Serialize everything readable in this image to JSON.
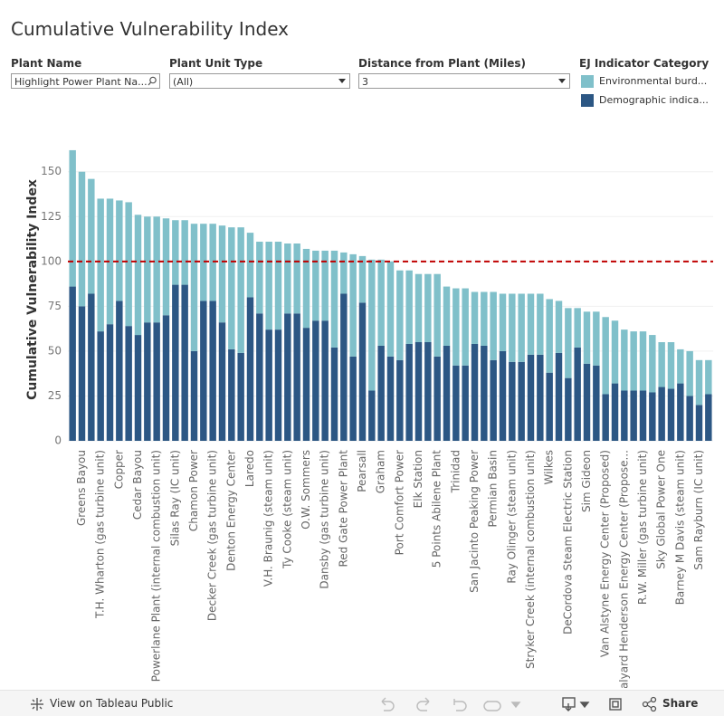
{
  "header": {
    "title": "Cumulative Vulnerability Index"
  },
  "filters": [
    {
      "label": "Plant Name",
      "value": "Highlight Power Plant Na..."
    },
    {
      "label": "Plant Unit Type",
      "value": "(All)"
    },
    {
      "label": "Distance from Plant (Miles)",
      "value": "3"
    }
  ],
  "footer": {
    "link": "View on Tableau Public",
    "share": "Share"
  },
  "chart_data": {
    "type": "stacked_bar",
    "ylabel": "Cumulative Vulnerability Index",
    "legend_title": "EJ Indicator Category",
    "categories": [
      null,
      "Greens Bayou",
      null,
      "T.H. Wharton (gas turbine unit)",
      null,
      "Copper",
      null,
      "Cedar Bayou",
      null,
      "Powerlane Plant (internal combustion unit)",
      null,
      "Silas Ray (IC unit)",
      null,
      "Chamon Power",
      null,
      "Decker Creek (gas turbine unit)",
      null,
      "Denton Energy Center",
      null,
      "Laredo",
      null,
      "V.H. Braunig (steam unit)",
      null,
      "Ty Cooke (steam unit)",
      null,
      "O.W. Sommers",
      null,
      "Dansby (gas turbine unit)",
      null,
      "Red Gate Power Plant",
      null,
      "Pearsall",
      null,
      "Graham",
      null,
      "Port Comfort Power",
      null,
      "Elk Station",
      null,
      "5 Points Abilene Plant",
      null,
      "Trinidad",
      null,
      "San Jacinto Peaking Power",
      null,
      "Permian Basin",
      null,
      "Ray Olinger (steam unit)",
      null,
      "Stryker Creek (internal combustion unit)",
      null,
      "Wilkes",
      null,
      "DeCordova Steam Electric Station",
      null,
      "Sim Gideon",
      null,
      "Van Alstyne Energy Center (Proposed)",
      null,
      "Halyard Henderson Energy Center (Propose...",
      null,
      "R.W. Miller (gas turbine unit)",
      null,
      "Sky Global Power One",
      null,
      "Barney M Davis (steam unit)",
      null,
      "Sam Rayburn (IC unit)",
      null
    ],
    "series": [
      {
        "name": "Environmental burd...",
        "color": "#80c0ca",
        "values": [
          76,
          75,
          64,
          74,
          70,
          56,
          69,
          67,
          59,
          59,
          54,
          36,
          36,
          71,
          43,
          43,
          54,
          68,
          70,
          36,
          40,
          49,
          49,
          39,
          39,
          44,
          39,
          39,
          54,
          23,
          57,
          26,
          73,
          48,
          53,
          50,
          41,
          38,
          38,
          46,
          33,
          43,
          43,
          29,
          30,
          38,
          32,
          38,
          38,
          34,
          34,
          41,
          29,
          39,
          22,
          29,
          30,
          43,
          35,
          34,
          33,
          33,
          32,
          25,
          26,
          19,
          25,
          25,
          19
        ]
      },
      {
        "name": "Demographic indica...",
        "color": "#2c5784",
        "values": [
          86,
          75,
          82,
          61,
          65,
          78,
          64,
          59,
          66,
          66,
          70,
          87,
          87,
          50,
          78,
          78,
          66,
          51,
          49,
          80,
          71,
          62,
          62,
          71,
          71,
          63,
          67,
          67,
          52,
          82,
          47,
          77,
          28,
          53,
          47,
          45,
          54,
          55,
          55,
          47,
          53,
          42,
          42,
          54,
          53,
          45,
          50,
          44,
          44,
          48,
          48,
          38,
          49,
          35,
          52,
          43,
          42,
          26,
          32,
          28,
          28,
          28,
          27,
          30,
          29,
          32,
          25,
          20,
          26
        ]
      }
    ],
    "ylim": [
      0,
      165
    ],
    "yticks": [
      0,
      25,
      50,
      75,
      100,
      125,
      150
    ],
    "grid": true,
    "reference_line": {
      "value": 100,
      "color": "#c00000"
    }
  }
}
